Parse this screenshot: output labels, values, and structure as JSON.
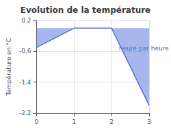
{
  "chart_data": {
    "type": "area",
    "title": "Evolution de la température",
    "x": [
      0,
      1,
      2,
      3
    ],
    "values": [
      -0.5,
      0.0,
      0.0,
      -2.0
    ],
    "ylabel": "Température en °C",
    "xlim": [
      0,
      3
    ],
    "ylim": [
      -2.2,
      0.2
    ],
    "xticks": [
      0,
      1,
      2,
      3
    ],
    "yticks": [
      0.2,
      -0.6,
      -1.4,
      -2.2
    ],
    "grid": true,
    "annotations": [
      {
        "text": "heure par heure",
        "x": 2.2,
        "y": -0.45
      }
    ]
  }
}
